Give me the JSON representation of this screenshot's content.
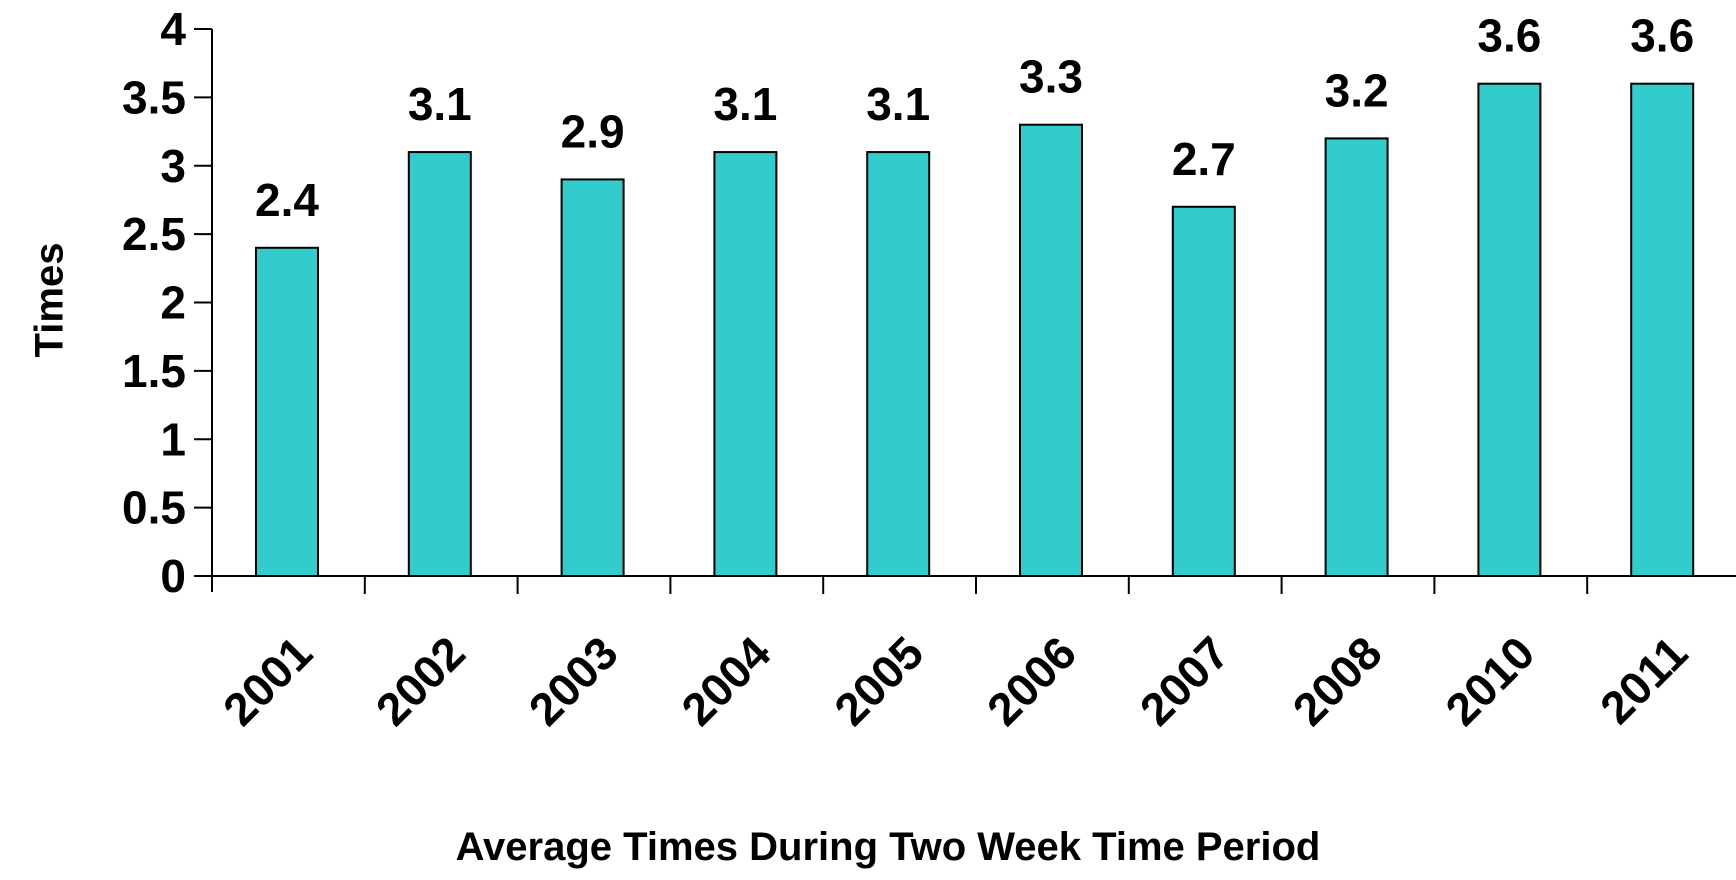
{
  "chart_data": {
    "type": "bar",
    "title": "",
    "xlabel": "Average Times During Two Week Time Period",
    "ylabel": "Times",
    "categories": [
      "2001",
      "2002",
      "2003",
      "2004",
      "2005",
      "2006",
      "2007",
      "2008",
      "2010",
      "2011"
    ],
    "values": [
      2.4,
      3.1,
      2.9,
      3.1,
      3.1,
      3.3,
      2.7,
      3.2,
      3.6,
      3.6
    ],
    "data_labels": [
      "2.4",
      "3.1",
      "2.9",
      "3.1",
      "3.1",
      "3.3",
      "2.7",
      "3.2",
      "3.6",
      "3.6"
    ],
    "ylim": [
      0,
      4
    ],
    "yticks": [
      "0",
      "0.5",
      "1",
      "1.5",
      "2",
      "2.5",
      "3",
      "3.5",
      "4"
    ],
    "grid": false,
    "legend": "none",
    "bar_color": "#33CCCC",
    "bar_edge_color": "#000000"
  }
}
